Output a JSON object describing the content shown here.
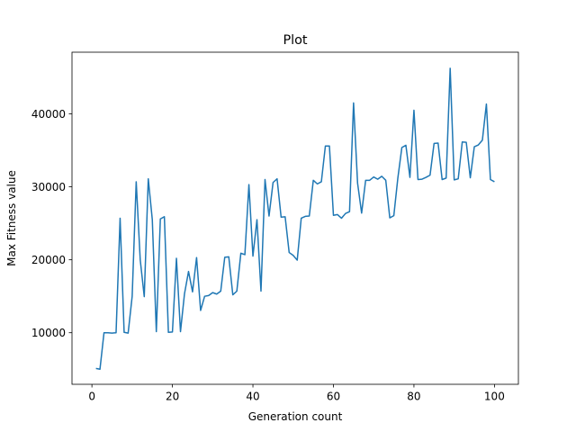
{
  "chart_data": {
    "type": "line",
    "title": "Plot",
    "xlabel": "Generation count",
    "ylabel": "Max Fitness value",
    "xlim": [
      -4.95,
      105.95
    ],
    "ylim": [
      2930,
      48460
    ],
    "xticks": [
      0,
      20,
      40,
      60,
      80,
      100
    ],
    "yticks": [
      10000,
      20000,
      30000,
      40000
    ],
    "grid": false,
    "line_color": "#1f77b4",
    "series": [
      {
        "x": [
          1,
          2,
          3,
          4,
          5,
          6,
          7,
          8,
          9,
          10,
          11,
          12,
          13,
          14,
          15,
          16,
          17,
          18,
          19,
          20,
          21,
          22,
          23,
          24,
          25,
          26,
          27,
          28,
          29,
          30,
          31,
          32,
          33,
          34,
          35,
          36,
          37,
          38,
          39,
          40,
          41,
          42,
          43,
          44,
          45,
          46,
          47,
          48,
          49,
          50,
          51,
          52,
          53,
          54,
          55,
          56,
          57,
          58,
          59,
          60,
          61,
          62,
          63,
          64,
          65,
          66,
          67,
          68,
          69,
          70,
          71,
          72,
          73,
          74,
          75,
          76,
          77,
          78,
          79,
          80,
          81,
          82,
          83,
          84,
          85,
          86,
          87,
          88,
          89,
          90,
          91,
          92,
          93,
          94,
          95,
          96,
          97,
          98,
          99,
          100
        ],
        "y": [
          5100,
          5000,
          10000,
          10000,
          9950,
          10000,
          25700,
          10050,
          9950,
          15000,
          30700,
          20000,
          14950,
          31100,
          25500,
          10150,
          25600,
          25900,
          10050,
          10100,
          20200,
          10150,
          15350,
          18400,
          15600,
          20300,
          13050,
          15000,
          15100,
          15500,
          15300,
          15700,
          20350,
          20400,
          15200,
          15700,
          20900,
          20700,
          30300,
          20500,
          25500,
          15700,
          31000,
          26000,
          30600,
          31100,
          25850,
          25900,
          21000,
          20600,
          19950,
          25700,
          25950,
          26000,
          30900,
          30400,
          30700,
          35600,
          35600,
          26100,
          26200,
          25700,
          26350,
          26600,
          41500,
          30500,
          26400,
          30900,
          30900,
          31350,
          31050,
          31450,
          30900,
          25750,
          26050,
          31200,
          35400,
          35700,
          31300,
          40500,
          31000,
          31050,
          31300,
          31600,
          35950,
          36000,
          31000,
          31200,
          46250,
          30950,
          31100,
          36150,
          36100,
          31250,
          35500,
          35750,
          36400,
          41350,
          31000,
          30700
        ]
      }
    ]
  }
}
